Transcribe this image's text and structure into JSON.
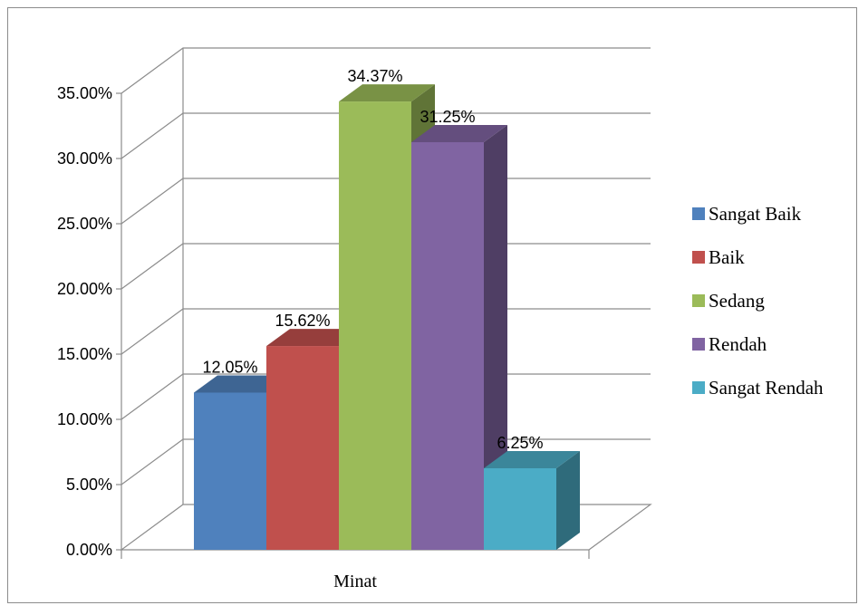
{
  "chart_data": {
    "type": "bar",
    "categories": [
      "Minat"
    ],
    "series": [
      {
        "name": "Sangat Baik",
        "values": [
          12.05
        ],
        "color": "#4F81BD"
      },
      {
        "name": "Baik",
        "values": [
          15.62
        ],
        "color": "#C0504D"
      },
      {
        "name": "Sedang",
        "values": [
          34.37
        ],
        "color": "#9BBB59"
      },
      {
        "name": "Rendah",
        "values": [
          31.25
        ],
        "color": "#8064A2"
      },
      {
        "name": "Sangat Rendah",
        "values": [
          6.25
        ],
        "color": "#4BACC6"
      }
    ],
    "data_labels": [
      "12.05%",
      "15.62%",
      "34.37%",
      "31.25%",
      "6.25%"
    ],
    "y_ticks": [
      "0.00%",
      "5.00%",
      "10.00%",
      "15.00%",
      "20.00%",
      "25.00%",
      "30.00%",
      "35.00%"
    ],
    "ylim": [
      0,
      35
    ],
    "title": "",
    "xlabel": "",
    "ylabel": "",
    "grid": true,
    "style": "3d",
    "legend_position": "right"
  }
}
